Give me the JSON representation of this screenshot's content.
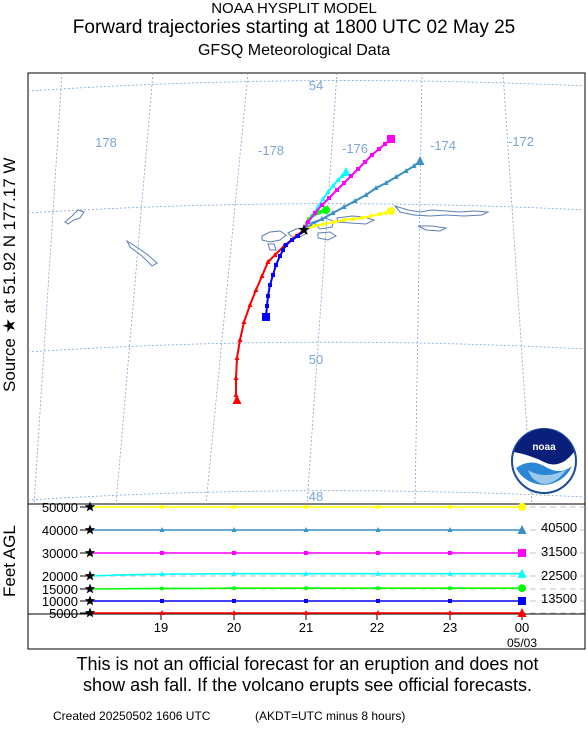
{
  "header": {
    "line1": "NOAA HYSPLIT MODEL",
    "line2": "Forward trajectories starting at 1800 UTC 02 May 25",
    "line3": "GFSQ Meteorological Data"
  },
  "source_label": "Source ★  at    51.92 N  177.17 W",
  "agl_label": "Feet AGL",
  "logo_text": "noaa",
  "disclaimer": {
    "line1": "This is not an official forecast for an eruption and does not",
    "line2": "show ash fall. If the volcano erupts see official forecasts."
  },
  "footer": {
    "created": "Created 20250502 1606 UTC",
    "note": "(AKDT=UTC minus 8 hours)"
  },
  "colors": {
    "red": "#ff0000",
    "blue": "#0000ff",
    "green": "#00ff00",
    "cyan": "#00ffff",
    "magenta": "#ff00ff",
    "steelblue": "#3a8fc4",
    "yellow": "#ffff00",
    "grid": "#7aa6d4",
    "coast": "#5e7fb4"
  },
  "chart_data": [
    {
      "type": "line",
      "name": "trajectory map",
      "lat_labels": [
        "54",
        "50",
        "48"
      ],
      "lon_labels": [
        "178",
        "-178",
        "-176",
        "-174",
        "-172"
      ],
      "source": {
        "lat": 51.92,
        "lon": -177.17
      }
    },
    {
      "type": "line",
      "name": "vertical profile",
      "x_tick_labels": [
        "19",
        "20",
        "21",
        "22",
        "23",
        "00"
      ],
      "x_sub_label": "05/03",
      "y_tick_labels": [
        "50000",
        "40000",
        "30000",
        "20000",
        "15000",
        "10000",
        "5000"
      ],
      "y_ticks": [
        50000,
        40000,
        30000,
        20000,
        15000,
        10000,
        5000
      ],
      "right_labels": [
        "40500",
        "31500",
        "22500",
        "13500"
      ],
      "series": [
        {
          "color": "red",
          "marker": "triangle",
          "values": [
            5000,
            5000,
            5000,
            5000,
            5000,
            5000,
            5000,
            5000,
            5000,
            5000,
            5000,
            5000,
            5000
          ]
        },
        {
          "color": "blue",
          "marker": "square",
          "values": [
            10000,
            10000,
            10000,
            10000,
            10000,
            10000,
            10000,
            10000,
            10000,
            10000,
            10000,
            10000,
            10000
          ]
        },
        {
          "color": "green",
          "marker": "circle",
          "values": [
            15000,
            15100,
            15200,
            15200,
            15300,
            15300,
            15300,
            15300,
            15300,
            15300,
            15300,
            15300,
            15300
          ]
        },
        {
          "color": "cyan",
          "marker": "triangle",
          "values": [
            20000,
            20500,
            20800,
            20900,
            21000,
            21000,
            21000,
            21000,
            21000,
            21000,
            21000,
            21000,
            21000
          ]
        },
        {
          "color": "magenta",
          "marker": "square",
          "values": [
            30000,
            30000,
            30000,
            30000,
            30000,
            30000,
            30000,
            30000,
            30000,
            30000,
            30000,
            30000,
            30000
          ]
        },
        {
          "color": "steelblue",
          "marker": "triangle",
          "values": [
            40000,
            40000,
            40000,
            40000,
            40000,
            40000,
            40000,
            40000,
            40000,
            40000,
            40000,
            40000,
            40000
          ]
        },
        {
          "color": "yellow",
          "marker": "circle",
          "values": [
            50000,
            50000,
            50000,
            50000,
            50000,
            50000,
            50000,
            50000,
            50000,
            50000,
            50000,
            50000,
            50000
          ]
        }
      ]
    }
  ]
}
